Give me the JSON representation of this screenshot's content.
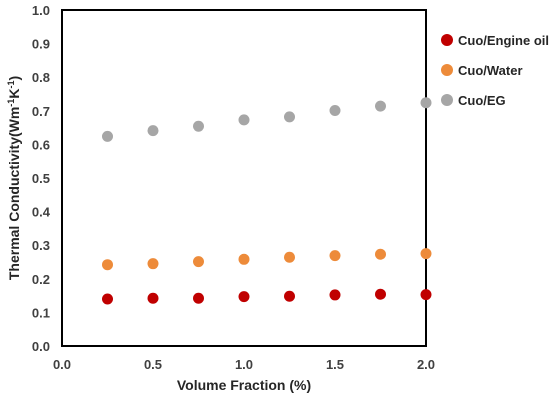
{
  "chart_data": {
    "type": "scatter",
    "title": "",
    "xlabel": "Volume Fraction (%)",
    "ylabel": "Thermal Conductivity(Wm",
    "ylabel_sup": "-1",
    "ylabel_mid": "K",
    "ylabel_sup2": "-1",
    "ylabel_end": ")",
    "xlim": [
      0,
      2.0
    ],
    "ylim": [
      0,
      1.0
    ],
    "x_ticks": [
      0.0,
      0.5,
      1.0,
      1.5,
      2.0
    ],
    "x_tick_labels": [
      "0.0",
      "0.5",
      "1.0",
      "1.5",
      "2.0"
    ],
    "y_ticks": [
      0.0,
      0.1,
      0.2,
      0.3,
      0.4,
      0.5,
      0.6,
      0.7,
      0.8,
      0.9,
      1.0
    ],
    "y_tick_labels": [
      "0.0",
      "0.1",
      "0.2",
      "0.3",
      "0.4",
      "0.5",
      "0.6",
      "0.7",
      "0.8",
      "0.9",
      "1.0"
    ],
    "grid": false,
    "legend_position": "right",
    "x": [
      0.25,
      0.5,
      0.75,
      1.0,
      1.25,
      1.5,
      1.75,
      2.0
    ],
    "series": [
      {
        "name": "Cuo/Engine oil",
        "color": "#c00000",
        "values": [
          0.14,
          0.142,
          0.142,
          0.147,
          0.148,
          0.152,
          0.154,
          0.153
        ]
      },
      {
        "name": "Cuo/Water",
        "color": "#ed8b3a",
        "values": [
          0.242,
          0.245,
          0.251,
          0.258,
          0.264,
          0.269,
          0.273,
          0.275
        ]
      },
      {
        "name": "Cuo/EG",
        "color": "#a6a6a6",
        "values": [
          0.624,
          0.641,
          0.654,
          0.673,
          0.682,
          0.701,
          0.714,
          0.724
        ]
      }
    ]
  }
}
